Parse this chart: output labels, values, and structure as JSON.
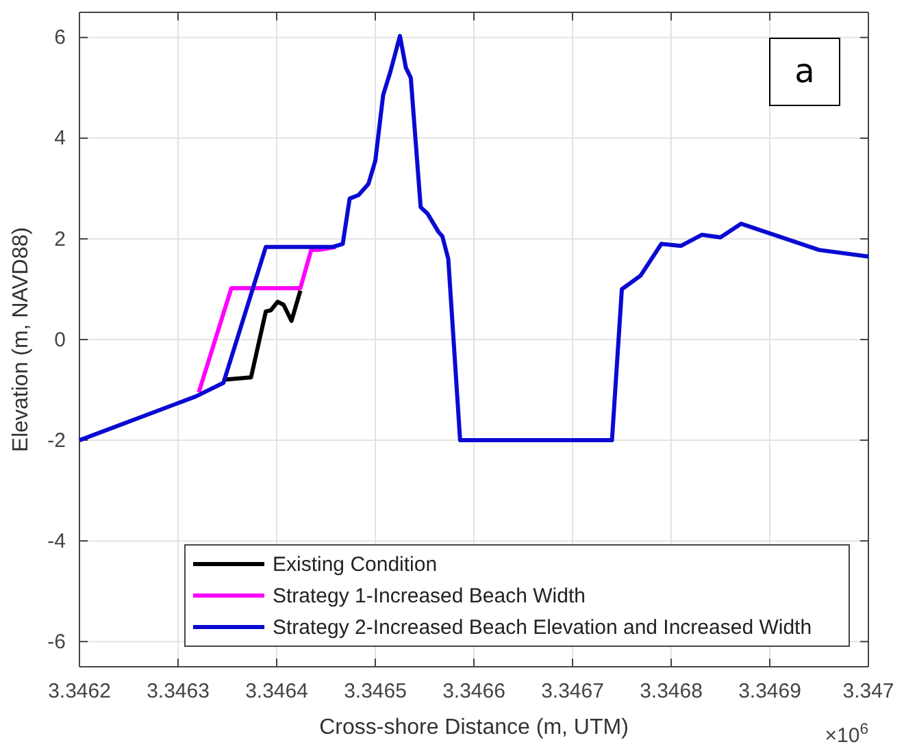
{
  "chart_data": {
    "type": "line",
    "xlabel": "Cross-shore Distance (m, UTM)",
    "ylabel": "Elevation (m, NAVD88)",
    "xlim": [
      3.3462,
      3.347
    ],
    "xticks": [
      3.3462,
      3.3463,
      3.3464,
      3.3465,
      3.3466,
      3.3467,
      3.3468,
      3.3469,
      3.347
    ],
    "ylim": [
      -6.5,
      6.5
    ],
    "yticks": [
      -6,
      -4,
      -2,
      0,
      2,
      4,
      6
    ],
    "grid": true,
    "legend": "bottom left",
    "line_style": "solid",
    "marker": "none",
    "annotations": [
      "a",
      "×10$^{6}$"
    ],
    "series": [
      {
        "name": "Existing Condition",
        "color": "#000000",
        "x": [
          3.346346,
          3.346374,
          3.346389,
          3.346394,
          3.346401,
          3.346407,
          3.346415,
          3.346424
        ],
        "values": [
          -0.8,
          -0.75,
          0.56,
          0.58,
          0.75,
          0.69,
          0.37,
          0.97
        ]
      },
      {
        "name": "Strategy 1-Increased Beach Width",
        "color": "#ff00ff",
        "x": [
          3.346321,
          3.346354,
          3.346424,
          3.346435,
          3.346443,
          3.34646
        ],
        "values": [
          -1.05,
          1.02,
          1.02,
          1.78,
          1.78,
          1.84
        ]
      },
      {
        "name": "Strategy 2-Increased Beach Elevation and Increased Width",
        "color": "#0a0ad2",
        "x": [
          3.3462,
          3.346318,
          3.346346,
          3.346389,
          3.346457,
          3.346467,
          3.346474,
          3.346483,
          3.346493,
          3.3465,
          3.346508,
          3.346515,
          3.346525,
          3.346531,
          3.346536,
          3.346546,
          3.346553,
          3.346564,
          3.346568,
          3.346574,
          3.346586,
          3.34674,
          3.34675,
          3.346769,
          3.34679,
          3.34681,
          3.346831,
          3.34685,
          3.346871,
          3.34695,
          3.347
        ],
        "values": [
          -2.0,
          -1.13,
          -0.86,
          1.84,
          1.84,
          1.9,
          2.8,
          2.87,
          3.09,
          3.55,
          4.86,
          5.3,
          6.03,
          5.4,
          5.2,
          2.63,
          2.5,
          2.14,
          2.05,
          1.6,
          -2.0,
          -2.0,
          1.0,
          1.27,
          1.9,
          1.86,
          2.08,
          2.03,
          2.3,
          1.78,
          1.65
        ]
      }
    ]
  }
}
